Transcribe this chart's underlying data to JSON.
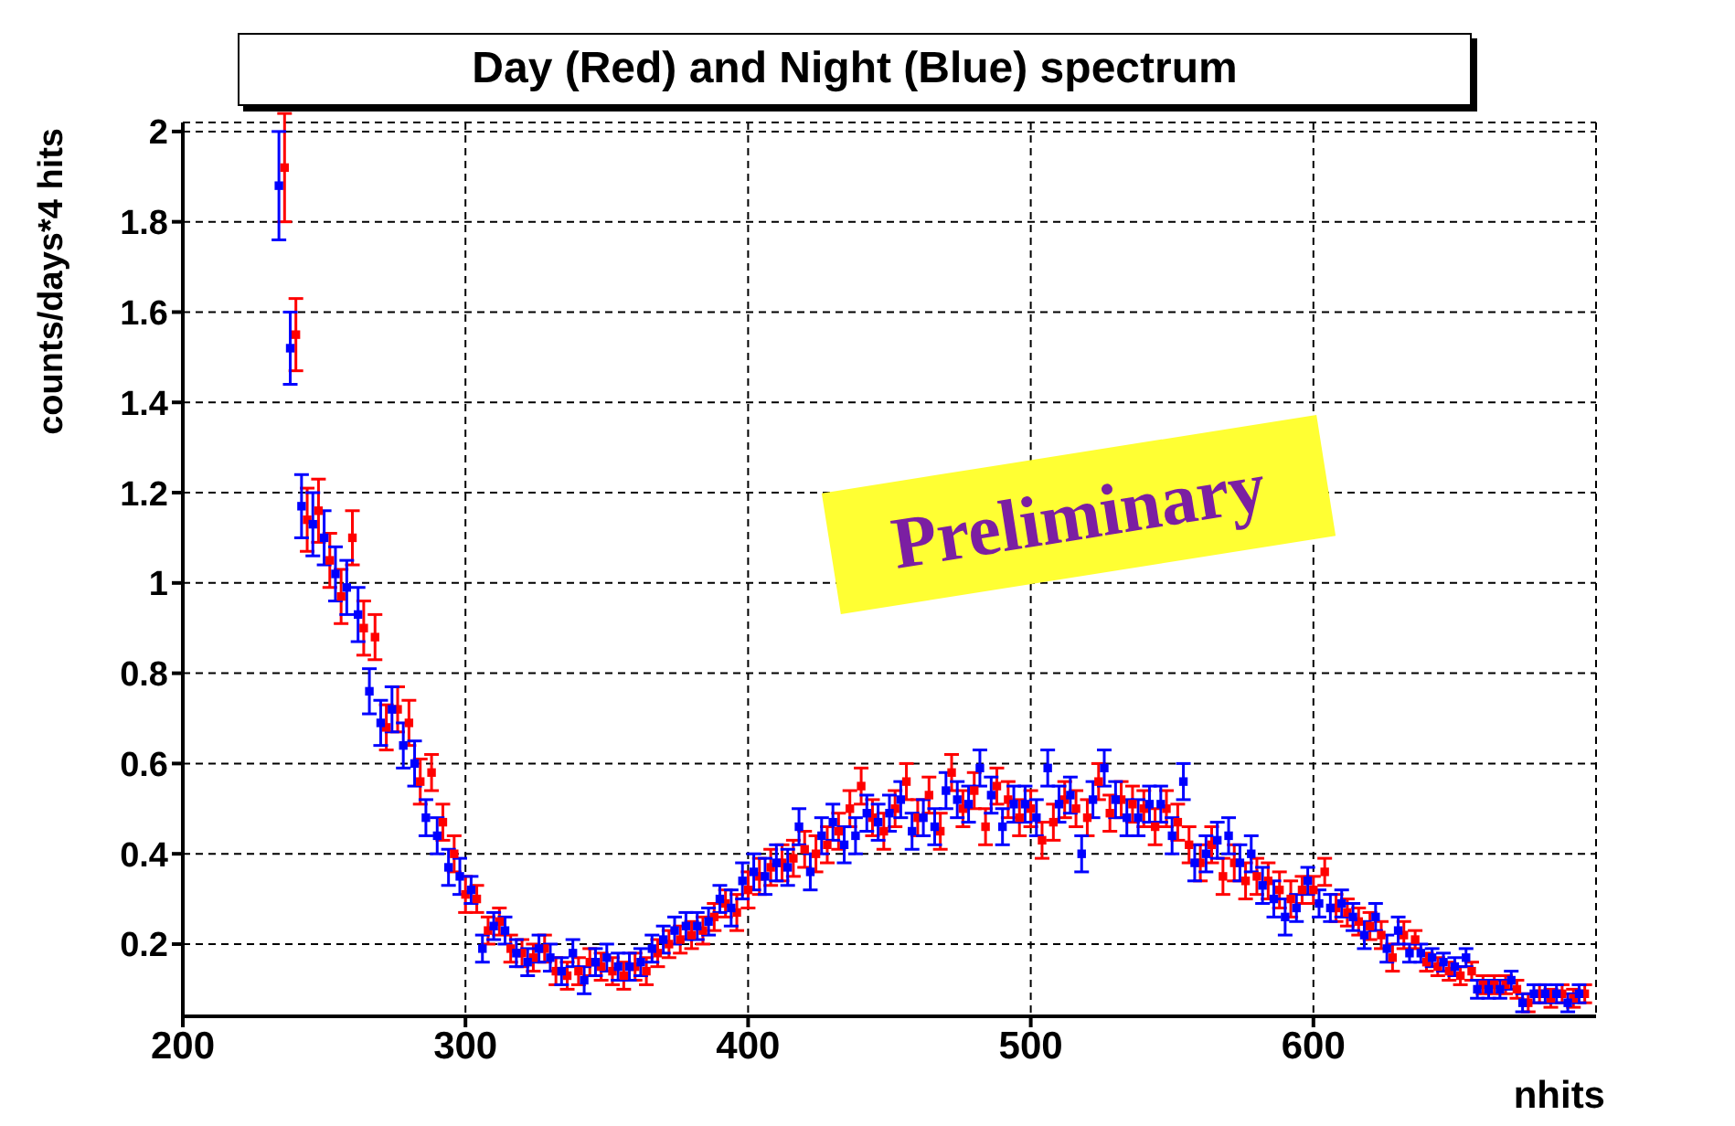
{
  "chart_data": {
    "type": "scatter",
    "title": "Day (Red) and Night (Blue) spectrum",
    "xlabel": "nhits",
    "ylabel": "counts/days*4 hits",
    "annotations": [
      "Preliminary"
    ],
    "x": [
      234,
      238,
      242,
      246,
      250,
      254,
      258,
      262,
      266,
      270,
      274,
      278,
      282,
      286,
      290,
      294,
      298,
      302,
      306,
      310,
      314,
      318,
      322,
      326,
      330,
      334,
      338,
      342,
      346,
      350,
      354,
      358,
      362,
      366,
      370,
      374,
      378,
      382,
      386,
      390,
      394,
      398,
      402,
      406,
      410,
      414,
      418,
      422,
      426,
      430,
      434,
      438,
      442,
      446,
      450,
      454,
      458,
      462,
      466,
      470,
      474,
      478,
      482,
      486,
      490,
      494,
      498,
      502,
      506,
      510,
      514,
      518,
      522,
      526,
      530,
      534,
      538,
      542,
      546,
      550,
      554,
      558,
      562,
      566,
      570,
      574,
      578,
      582,
      586,
      590,
      594,
      598,
      602,
      606,
      610,
      614,
      618,
      622,
      626,
      630,
      634,
      638,
      642,
      646,
      650,
      654,
      658,
      662,
      666,
      670,
      674,
      678,
      682,
      686,
      690,
      694
    ],
    "series": [
      {
        "color": "#ff0000",
        "x": [
          236,
          240,
          244,
          248,
          252,
          256,
          260,
          264,
          268,
          272,
          276,
          280,
          284,
          288,
          292,
          296,
          300,
          304,
          308,
          312,
          316,
          320,
          324,
          328,
          332,
          336,
          340,
          344,
          348,
          352,
          356,
          360,
          364,
          368,
          372,
          376,
          380,
          384,
          388,
          392,
          396,
          400,
          404,
          408,
          412,
          416,
          420,
          424,
          428,
          432,
          436,
          440,
          444,
          448,
          452,
          456,
          460,
          464,
          468,
          472,
          476,
          480,
          484,
          488,
          492,
          496,
          500,
          504,
          508,
          512,
          516,
          520,
          524,
          528,
          532,
          536,
          540,
          544,
          548,
          552,
          556,
          560,
          564,
          568,
          572,
          576,
          580,
          584,
          588,
          592,
          596,
          600,
          604,
          608,
          612,
          616,
          620,
          624,
          628,
          632,
          636,
          640,
          644,
          648,
          652,
          656,
          660,
          664,
          668,
          672,
          676,
          680,
          684,
          688,
          692,
          696
        ],
        "values": [
          1.92,
          1.55,
          1.14,
          1.16,
          1.05,
          0.97,
          1.1,
          0.9,
          0.88,
          0.68,
          0.72,
          0.69,
          0.56,
          0.58,
          0.47,
          0.4,
          0.31,
          0.3,
          0.23,
          0.25,
          0.19,
          0.18,
          0.17,
          0.19,
          0.14,
          0.13,
          0.14,
          0.16,
          0.15,
          0.14,
          0.13,
          0.15,
          0.14,
          0.18,
          0.2,
          0.21,
          0.22,
          0.23,
          0.26,
          0.29,
          0.27,
          0.32,
          0.35,
          0.37,
          0.38,
          0.39,
          0.41,
          0.4,
          0.42,
          0.45,
          0.5,
          0.55,
          0.48,
          0.45,
          0.5,
          0.56,
          0.48,
          0.53,
          0.45,
          0.58,
          0.5,
          0.54,
          0.46,
          0.55,
          0.52,
          0.48,
          0.5,
          0.43,
          0.47,
          0.52,
          0.5,
          0.48,
          0.56,
          0.49,
          0.52,
          0.51,
          0.5,
          0.46,
          0.5,
          0.47,
          0.42,
          0.38,
          0.42,
          0.35,
          0.38,
          0.34,
          0.35,
          0.34,
          0.32,
          0.3,
          0.32,
          0.32,
          0.36,
          0.28,
          0.27,
          0.25,
          0.24,
          0.22,
          0.17,
          0.22,
          0.21,
          0.16,
          0.15,
          0.14,
          0.13,
          0.14,
          0.11,
          0.11,
          0.11,
          0.1,
          0.07,
          0.09,
          0.08,
          0.09,
          0.08,
          0.09
        ],
        "errors": [
          0.12,
          0.08,
          0.07,
          0.07,
          0.06,
          0.06,
          0.06,
          0.06,
          0.05,
          0.05,
          0.05,
          0.05,
          0.05,
          0.04,
          0.04,
          0.04,
          0.04,
          0.03,
          0.03,
          0.03,
          0.03,
          0.03,
          0.03,
          0.03,
          0.03,
          0.03,
          0.03,
          0.03,
          0.03,
          0.03,
          0.03,
          0.03,
          0.03,
          0.03,
          0.03,
          0.03,
          0.03,
          0.03,
          0.03,
          0.03,
          0.04,
          0.04,
          0.04,
          0.04,
          0.04,
          0.04,
          0.04,
          0.04,
          0.04,
          0.04,
          0.04,
          0.04,
          0.04,
          0.04,
          0.04,
          0.04,
          0.04,
          0.04,
          0.04,
          0.04,
          0.04,
          0.04,
          0.04,
          0.04,
          0.04,
          0.04,
          0.04,
          0.04,
          0.04,
          0.04,
          0.04,
          0.04,
          0.04,
          0.04,
          0.04,
          0.04,
          0.04,
          0.04,
          0.04,
          0.04,
          0.04,
          0.04,
          0.04,
          0.04,
          0.04,
          0.04,
          0.04,
          0.04,
          0.04,
          0.04,
          0.03,
          0.03,
          0.03,
          0.03,
          0.03,
          0.03,
          0.03,
          0.03,
          0.03,
          0.03,
          0.02,
          0.02,
          0.02,
          0.02,
          0.02,
          0.02,
          0.02,
          0.02,
          0.02,
          0.02,
          0.02,
          0.02,
          0.02,
          0.02,
          0.02,
          0.02
        ]
      },
      {
        "color": "#0000ff",
        "values": [
          1.88,
          1.52,
          1.17,
          1.13,
          1.1,
          1.02,
          0.99,
          0.93,
          0.76,
          0.69,
          0.72,
          0.64,
          0.6,
          0.48,
          0.44,
          0.37,
          0.35,
          0.32,
          0.19,
          0.24,
          0.23,
          0.18,
          0.16,
          0.19,
          0.17,
          0.14,
          0.18,
          0.12,
          0.16,
          0.17,
          0.15,
          0.15,
          0.16,
          0.19,
          0.21,
          0.23,
          0.24,
          0.24,
          0.25,
          0.3,
          0.28,
          0.34,
          0.36,
          0.35,
          0.38,
          0.37,
          0.46,
          0.36,
          0.44,
          0.47,
          0.42,
          0.44,
          0.49,
          0.47,
          0.49,
          0.52,
          0.45,
          0.48,
          0.46,
          0.54,
          0.52,
          0.51,
          0.59,
          0.53,
          0.46,
          0.51,
          0.51,
          0.48,
          0.59,
          0.51,
          0.53,
          0.4,
          0.52,
          0.59,
          0.52,
          0.48,
          0.48,
          0.51,
          0.51,
          0.44,
          0.56,
          0.38,
          0.4,
          0.43,
          0.44,
          0.38,
          0.4,
          0.33,
          0.3,
          0.26,
          0.28,
          0.34,
          0.29,
          0.28,
          0.29,
          0.26,
          0.22,
          0.26,
          0.19,
          0.23,
          0.18,
          0.18,
          0.17,
          0.16,
          0.15,
          0.17,
          0.1,
          0.1,
          0.1,
          0.12,
          0.07,
          0.09,
          0.09,
          0.09,
          0.07,
          0.09
        ],
        "errors": [
          0.12,
          0.08,
          0.07,
          0.07,
          0.06,
          0.06,
          0.06,
          0.06,
          0.05,
          0.05,
          0.05,
          0.05,
          0.05,
          0.04,
          0.04,
          0.04,
          0.04,
          0.03,
          0.03,
          0.03,
          0.03,
          0.03,
          0.03,
          0.03,
          0.03,
          0.03,
          0.03,
          0.03,
          0.03,
          0.03,
          0.03,
          0.03,
          0.03,
          0.03,
          0.03,
          0.03,
          0.03,
          0.03,
          0.03,
          0.03,
          0.04,
          0.04,
          0.04,
          0.04,
          0.04,
          0.04,
          0.04,
          0.04,
          0.04,
          0.04,
          0.04,
          0.04,
          0.04,
          0.04,
          0.04,
          0.04,
          0.04,
          0.04,
          0.04,
          0.04,
          0.04,
          0.04,
          0.04,
          0.04,
          0.04,
          0.04,
          0.04,
          0.04,
          0.04,
          0.04,
          0.04,
          0.04,
          0.04,
          0.04,
          0.04,
          0.04,
          0.04,
          0.04,
          0.04,
          0.04,
          0.04,
          0.04,
          0.04,
          0.04,
          0.04,
          0.04,
          0.04,
          0.04,
          0.04,
          0.04,
          0.03,
          0.03,
          0.03,
          0.03,
          0.03,
          0.03,
          0.03,
          0.03,
          0.03,
          0.03,
          0.02,
          0.02,
          0.02,
          0.02,
          0.02,
          0.02,
          0.02,
          0.02,
          0.02,
          0.02,
          0.02,
          0.02,
          0.02,
          0.02,
          0.02,
          0.02
        ]
      }
    ],
    "xlim": [
      200,
      700
    ],
    "xticks": [
      200,
      300,
      400,
      500,
      600
    ],
    "ylim": [
      0.04,
      2.02
    ],
    "yticks": [
      0.2,
      0.4,
      0.6,
      0.8,
      1,
      1.2,
      1.4,
      1.6,
      1.8,
      2
    ],
    "grid": true,
    "marker": "square"
  }
}
